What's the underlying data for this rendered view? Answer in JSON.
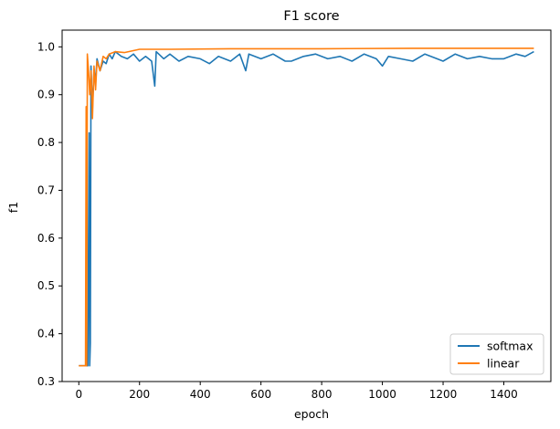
{
  "chart_data": {
    "type": "line",
    "title": "F1 score",
    "xlabel": "epoch",
    "ylabel": "f1",
    "xlim": [
      -55,
      1555
    ],
    "ylim": [
      0.3,
      1.035
    ],
    "xticks": [
      0,
      200,
      400,
      600,
      800,
      1000,
      1200,
      1400
    ],
    "yticks": [
      0.3,
      0.4,
      0.5,
      0.6,
      0.7,
      0.8,
      0.9,
      1.0
    ],
    "xtick_labels": [
      "0",
      "200",
      "400",
      "600",
      "800",
      "1000",
      "1200",
      "1400"
    ],
    "ytick_labels": [
      "0.3",
      "0.4",
      "0.5",
      "0.6",
      "0.7",
      "0.8",
      "0.9",
      "1.0"
    ],
    "grid": false,
    "legend_position": "lower-right",
    "series": [
      {
        "name": "softmax",
        "color": "#1f77b4",
        "points": [
          [
            0,
            0.333
          ],
          [
            30,
            0.333
          ],
          [
            32,
            0.6
          ],
          [
            34,
            0.82
          ],
          [
            36,
            0.333
          ],
          [
            38,
            0.38
          ],
          [
            40,
            0.96
          ],
          [
            45,
            0.87
          ],
          [
            50,
            0.95
          ],
          [
            55,
            0.93
          ],
          [
            60,
            0.975
          ],
          [
            70,
            0.95
          ],
          [
            80,
            0.97
          ],
          [
            90,
            0.965
          ],
          [
            100,
            0.985
          ],
          [
            110,
            0.975
          ],
          [
            120,
            0.99
          ],
          [
            140,
            0.98
          ],
          [
            160,
            0.975
          ],
          [
            180,
            0.985
          ],
          [
            200,
            0.97
          ],
          [
            220,
            0.98
          ],
          [
            240,
            0.97
          ],
          [
            250,
            0.918
          ],
          [
            255,
            0.99
          ],
          [
            280,
            0.975
          ],
          [
            300,
            0.985
          ],
          [
            330,
            0.97
          ],
          [
            360,
            0.98
          ],
          [
            400,
            0.975
          ],
          [
            430,
            0.965
          ],
          [
            460,
            0.98
          ],
          [
            500,
            0.97
          ],
          [
            530,
            0.985
          ],
          [
            550,
            0.95
          ],
          [
            560,
            0.985
          ],
          [
            600,
            0.975
          ],
          [
            640,
            0.985
          ],
          [
            680,
            0.97
          ],
          [
            700,
            0.97
          ],
          [
            740,
            0.98
          ],
          [
            780,
            0.985
          ],
          [
            820,
            0.975
          ],
          [
            860,
            0.98
          ],
          [
            900,
            0.97
          ],
          [
            940,
            0.985
          ],
          [
            980,
            0.975
          ],
          [
            1000,
            0.96
          ],
          [
            1020,
            0.98
          ],
          [
            1060,
            0.975
          ],
          [
            1100,
            0.97
          ],
          [
            1140,
            0.985
          ],
          [
            1180,
            0.975
          ],
          [
            1200,
            0.97
          ],
          [
            1240,
            0.985
          ],
          [
            1280,
            0.975
          ],
          [
            1320,
            0.98
          ],
          [
            1360,
            0.975
          ],
          [
            1400,
            0.975
          ],
          [
            1440,
            0.985
          ],
          [
            1470,
            0.98
          ],
          [
            1499,
            0.99
          ]
        ]
      },
      {
        "name": "linear",
        "color": "#ff7f0e",
        "points": [
          [
            0,
            0.333
          ],
          [
            22,
            0.333
          ],
          [
            24,
            0.875
          ],
          [
            26,
            0.333
          ],
          [
            28,
            0.985
          ],
          [
            32,
            0.95
          ],
          [
            36,
            0.9
          ],
          [
            40,
            0.95
          ],
          [
            45,
            0.85
          ],
          [
            50,
            0.96
          ],
          [
            55,
            0.91
          ],
          [
            60,
            0.97
          ],
          [
            70,
            0.95
          ],
          [
            80,
            0.98
          ],
          [
            90,
            0.975
          ],
          [
            100,
            0.985
          ],
          [
            120,
            0.99
          ],
          [
            150,
            0.988
          ],
          [
            200,
            0.995
          ],
          [
            300,
            0.995
          ],
          [
            500,
            0.996
          ],
          [
            800,
            0.996
          ],
          [
            1100,
            0.997
          ],
          [
            1499,
            0.997
          ]
        ]
      }
    ]
  }
}
